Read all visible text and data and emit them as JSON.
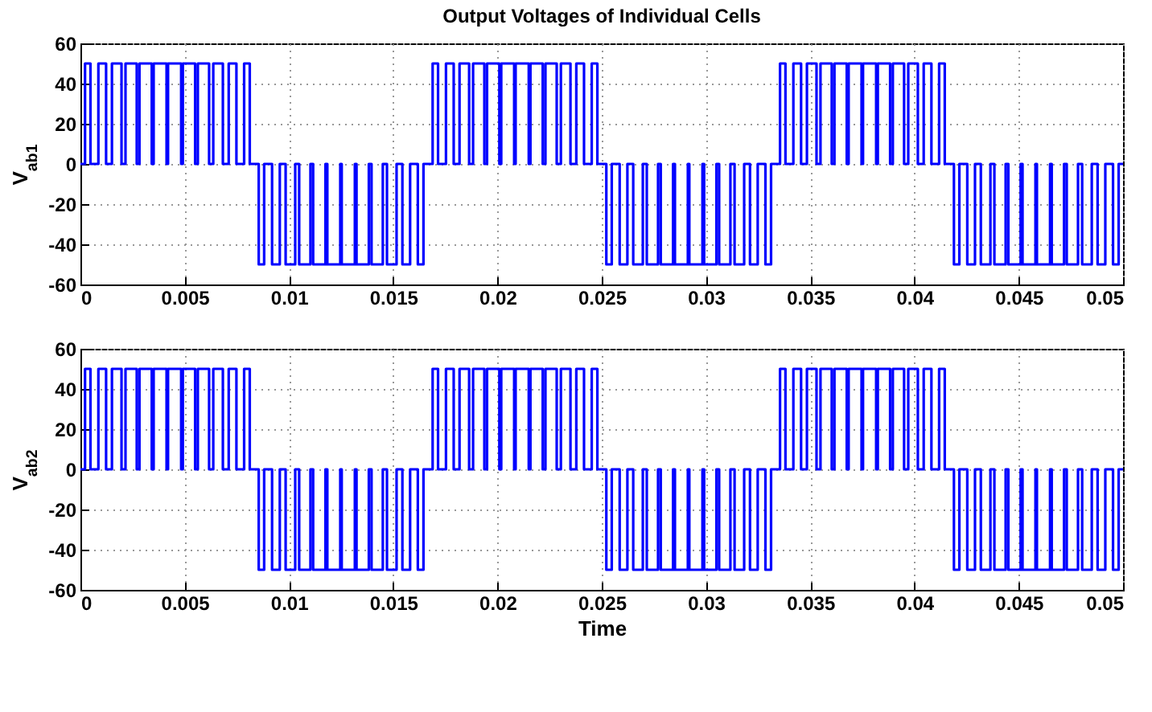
{
  "chart_data": [
    {
      "type": "step",
      "title": "Output Voltages of Individual Cells",
      "ylabel": "V$_{ab1}$",
      "xlim": [
        0,
        0.05
      ],
      "ylim": [
        -60,
        60
      ],
      "xticks": [
        0,
        0.005,
        0.01,
        0.015,
        0.02,
        0.025,
        0.03,
        0.035,
        0.04,
        0.045,
        0.05
      ],
      "yticks": [
        -60,
        -40,
        -20,
        0,
        20,
        40,
        60
      ],
      "grid": true,
      "x": [
        0,
        0.00022,
        0.00048,
        0.00086,
        0.00123,
        0.00151,
        0.00197,
        0.00216,
        0.0027,
        0.00283,
        0.00342,
        0.00351,
        0.00413,
        0.0042,
        0.00483,
        0.00491,
        0.0055,
        0.00563,
        0.00617,
        0.00637,
        0.00683,
        0.00711,
        0.00748,
        0.00785,
        0.00812,
        0.00855,
        0.00881,
        0.00919,
        0.00956,
        0.00984,
        0.0103,
        0.01049,
        0.01103,
        0.01116,
        0.01175,
        0.01184,
        0.01246,
        0.01253,
        0.01316,
        0.01324,
        0.01383,
        0.01396,
        0.0145,
        0.0147,
        0.01516,
        0.01544,
        0.01581,
        0.01618,
        0.01645,
        0.01689,
        0.01715,
        0.01753,
        0.0179,
        0.01818,
        0.01864,
        0.01883,
        0.01937,
        0.0195,
        0.02009,
        0.02018,
        0.0208,
        0.02087,
        0.0215,
        0.02158,
        0.02217,
        0.0223,
        0.02284,
        0.02304,
        0.0235,
        0.02378,
        0.02415,
        0.02452,
        0.02479,
        0.02522,
        0.02548,
        0.02586,
        0.02623,
        0.02651,
        0.02697,
        0.02716,
        0.0277,
        0.02783,
        0.02842,
        0.02851,
        0.02913,
        0.0292,
        0.02983,
        0.02991,
        0.0305,
        0.03063,
        0.03117,
        0.03137,
        0.03183,
        0.03211,
        0.03248,
        0.03285,
        0.03312,
        0.03355,
        0.03381,
        0.03419,
        0.03456,
        0.03484,
        0.0353,
        0.03549,
        0.03603,
        0.03616,
        0.03675,
        0.03684,
        0.03746,
        0.03753,
        0.03816,
        0.03824,
        0.03883,
        0.03896,
        0.0395,
        0.0397,
        0.04016,
        0.04044,
        0.04081,
        0.04118,
        0.04145,
        0.04189,
        0.04215,
        0.04253,
        0.0429,
        0.04318,
        0.04364,
        0.04383,
        0.04437,
        0.0445,
        0.04509,
        0.04518,
        0.0458,
        0.04587,
        0.0465,
        0.04658,
        0.04717,
        0.0473,
        0.04784,
        0.04804,
        0.0485,
        0.04878,
        0.04915,
        0.04952,
        0.04979,
        0.05
      ],
      "series": [
        {
          "color": "#0000ff",
          "values": [
            0,
            50,
            0,
            50,
            0,
            50,
            0,
            50,
            0,
            50,
            0,
            50,
            0,
            50,
            0,
            50,
            0,
            50,
            0,
            50,
            0,
            50,
            0,
            50,
            0,
            -50,
            0,
            -50,
            0,
            -50,
            0,
            -50,
            0,
            -50,
            0,
            -50,
            0,
            -50,
            0,
            -50,
            0,
            -50,
            0,
            -50,
            0,
            -50,
            0,
            -50,
            0,
            50,
            0,
            50,
            0,
            50,
            0,
            50,
            0,
            50,
            0,
            50,
            0,
            50,
            0,
            50,
            0,
            50,
            0,
            50,
            0,
            50,
            0,
            50,
            0,
            -50,
            0,
            -50,
            0,
            -50,
            0,
            -50,
            0,
            -50,
            0,
            -50,
            0,
            -50,
            0,
            -50,
            0,
            -50,
            0,
            -50,
            0,
            -50,
            0,
            -50,
            0,
            50,
            0,
            50,
            0,
            50,
            0,
            50,
            0,
            50,
            0,
            50,
            0,
            50,
            0,
            50,
            0,
            50,
            0,
            50,
            0,
            50,
            0,
            50,
            0,
            -50,
            0,
            -50,
            0,
            -50,
            0,
            -50,
            0,
            -50,
            0,
            -50,
            0,
            -50,
            0,
            -50,
            0,
            -50,
            0,
            -50,
            0,
            -50,
            0,
            -50,
            0,
            0
          ]
        }
      ]
    },
    {
      "type": "step",
      "xlabel": "Time",
      "ylabel": "V$_{ab2}$",
      "xlim": [
        0,
        0.05
      ],
      "ylim": [
        -60,
        60
      ],
      "xticks": [
        0,
        0.005,
        0.01,
        0.015,
        0.02,
        0.025,
        0.03,
        0.035,
        0.04,
        0.045,
        0.05
      ],
      "yticks": [
        -60,
        -40,
        -20,
        0,
        20,
        40,
        60
      ],
      "grid": true,
      "x": [
        0,
        0.00022,
        0.00048,
        0.00086,
        0.00123,
        0.00151,
        0.00197,
        0.00216,
        0.0027,
        0.00283,
        0.00342,
        0.00351,
        0.00413,
        0.0042,
        0.00483,
        0.00491,
        0.0055,
        0.00563,
        0.00617,
        0.00637,
        0.00683,
        0.00711,
        0.00748,
        0.00785,
        0.00812,
        0.00855,
        0.00881,
        0.00919,
        0.00956,
        0.00984,
        0.0103,
        0.01049,
        0.01103,
        0.01116,
        0.01175,
        0.01184,
        0.01246,
        0.01253,
        0.01316,
        0.01324,
        0.01383,
        0.01396,
        0.0145,
        0.0147,
        0.01516,
        0.01544,
        0.01581,
        0.01618,
        0.01645,
        0.01689,
        0.01715,
        0.01753,
        0.0179,
        0.01818,
        0.01864,
        0.01883,
        0.01937,
        0.0195,
        0.02009,
        0.02018,
        0.0208,
        0.02087,
        0.0215,
        0.02158,
        0.02217,
        0.0223,
        0.02284,
        0.02304,
        0.0235,
        0.02378,
        0.02415,
        0.02452,
        0.02479,
        0.02522,
        0.02548,
        0.02586,
        0.02623,
        0.02651,
        0.02697,
        0.02716,
        0.0277,
        0.02783,
        0.02842,
        0.02851,
        0.02913,
        0.0292,
        0.02983,
        0.02991,
        0.0305,
        0.03063,
        0.03117,
        0.03137,
        0.03183,
        0.03211,
        0.03248,
        0.03285,
        0.03312,
        0.03355,
        0.03381,
        0.03419,
        0.03456,
        0.03484,
        0.0353,
        0.03549,
        0.03603,
        0.03616,
        0.03675,
        0.03684,
        0.03746,
        0.03753,
        0.03816,
        0.03824,
        0.03883,
        0.03896,
        0.0395,
        0.0397,
        0.04016,
        0.04044,
        0.04081,
        0.04118,
        0.04145,
        0.04189,
        0.04215,
        0.04253,
        0.0429,
        0.04318,
        0.04364,
        0.04383,
        0.04437,
        0.0445,
        0.04509,
        0.04518,
        0.0458,
        0.04587,
        0.0465,
        0.04658,
        0.04717,
        0.0473,
        0.04784,
        0.04804,
        0.0485,
        0.04878,
        0.04915,
        0.04952,
        0.04979,
        0.05
      ],
      "series": [
        {
          "color": "#0000ff",
          "values": [
            0,
            50,
            0,
            50,
            0,
            50,
            0,
            50,
            0,
            50,
            0,
            50,
            0,
            50,
            0,
            50,
            0,
            50,
            0,
            50,
            0,
            50,
            0,
            50,
            0,
            -50,
            0,
            -50,
            0,
            -50,
            0,
            -50,
            0,
            -50,
            0,
            -50,
            0,
            -50,
            0,
            -50,
            0,
            -50,
            0,
            -50,
            0,
            -50,
            0,
            -50,
            0,
            50,
            0,
            50,
            0,
            50,
            0,
            50,
            0,
            50,
            0,
            50,
            0,
            50,
            0,
            50,
            0,
            50,
            0,
            50,
            0,
            50,
            0,
            50,
            0,
            -50,
            0,
            -50,
            0,
            -50,
            0,
            -50,
            0,
            -50,
            0,
            -50,
            0,
            -50,
            0,
            -50,
            0,
            -50,
            0,
            -50,
            0,
            -50,
            0,
            -50,
            0,
            50,
            0,
            50,
            0,
            50,
            0,
            50,
            0,
            50,
            0,
            50,
            0,
            50,
            0,
            50,
            0,
            50,
            0,
            50,
            0,
            50,
            0,
            50,
            0,
            -50,
            0,
            -50,
            0,
            -50,
            0,
            -50,
            0,
            -50,
            0,
            -50,
            0,
            -50,
            0,
            -50,
            0,
            -50,
            0,
            -50,
            0,
            -50,
            0,
            -50,
            0,
            0
          ]
        }
      ]
    }
  ]
}
